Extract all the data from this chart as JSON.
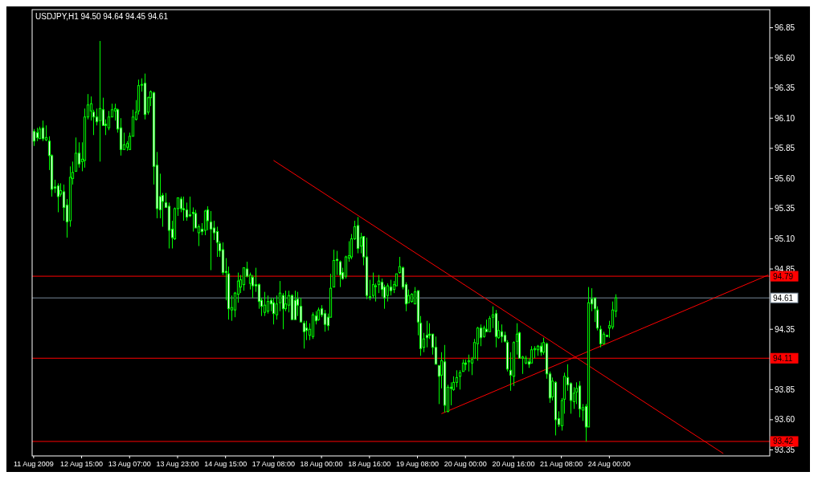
{
  "chart_data": {
    "type": "candlestick",
    "title": "USDJPY,H1 94.50 94.64 94.45 94.61",
    "ylim": [
      93.3,
      97.0
    ],
    "categories": [
      "11 Aug 2009",
      null,
      null,
      null,
      null,
      null,
      null,
      null,
      null,
      null,
      null,
      null,
      null,
      null,
      null,
      null,
      "12 Aug 15:00",
      null,
      null,
      null,
      null,
      null,
      null,
      null,
      null,
      null,
      null,
      null,
      null,
      null,
      null,
      null,
      "13 Aug 07:00",
      null,
      null,
      null,
      null,
      null,
      null,
      null,
      null,
      null,
      null,
      null,
      null,
      null,
      null,
      null,
      "13 Aug 23:00",
      null,
      null,
      null,
      null,
      null,
      null,
      null,
      null,
      null,
      null,
      null,
      null,
      null,
      null,
      null,
      "14 Aug 15:00",
      null,
      null,
      null,
      null,
      null,
      null,
      null,
      null,
      null,
      null,
      null,
      null,
      null,
      null,
      null,
      "17 Aug 08:00",
      null,
      null,
      null,
      null,
      null,
      null,
      null,
      null,
      null,
      null,
      null,
      null,
      null,
      null,
      null,
      "18 Aug 00:00",
      null,
      null,
      null,
      null,
      null,
      null,
      null,
      null,
      null,
      null,
      null,
      null,
      null,
      null,
      null,
      "18 Aug 16:00",
      null,
      null,
      null,
      null,
      null,
      null,
      null,
      null,
      null,
      null,
      null,
      null,
      null,
      null,
      null,
      "19 Aug 08:00",
      null,
      null,
      null,
      null,
      null,
      null,
      null,
      null,
      null,
      null,
      null,
      null,
      null,
      null,
      null,
      "20 Aug 00:00",
      null,
      null,
      null,
      null,
      null,
      null,
      null,
      null,
      null,
      null,
      null,
      null,
      null,
      null,
      null,
      "20 Aug 16:00",
      null,
      null,
      null,
      null,
      null,
      null,
      null,
      null,
      null,
      null,
      null,
      null,
      null,
      null,
      null,
      "21 Aug 08:00",
      null,
      null,
      null,
      null,
      null,
      null,
      null,
      null,
      null,
      null,
      null,
      null,
      null,
      null,
      null,
      "24 Aug 00:00",
      null,
      null,
      null,
      null,
      null,
      null,
      null,
      null,
      null,
      null,
      null,
      null,
      null,
      null,
      null,
      null,
      null,
      null,
      null,
      null,
      null,
      null,
      null,
      null,
      null,
      null,
      null,
      null,
      null,
      null,
      null,
      null,
      null,
      null,
      null,
      null,
      null,
      null,
      null,
      null,
      null,
      null,
      null,
      null,
      null,
      null,
      null,
      null,
      null,
      null,
      null,
      null,
      null
    ],
    "yticks": [
      {
        "value": 96.85,
        "label": "96.85"
      },
      {
        "value": 96.6,
        "label": "96.60"
      },
      {
        "value": 96.35,
        "label": "96.35"
      },
      {
        "value": 96.1,
        "label": "96.10"
      },
      {
        "value": 95.85,
        "label": "95.85"
      },
      {
        "value": 95.6,
        "label": "95.60"
      },
      {
        "value": 95.35,
        "label": "95.35"
      },
      {
        "value": 95.1,
        "label": "95.10"
      },
      {
        "value": 94.85,
        "label": "94.85"
      },
      {
        "value": 94.35,
        "label": "94.35"
      },
      {
        "value": 93.85,
        "label": "93.85"
      },
      {
        "value": 93.6,
        "label": "93.60"
      },
      {
        "value": 93.35,
        "label": "93.35"
      }
    ],
    "ref_lines": [
      {
        "axis": "y",
        "value": 94.79,
        "label": "94.79",
        "color": "#ff0000"
      },
      {
        "axis": "y",
        "value": 94.61,
        "label": "94.61",
        "color": "#778899"
      },
      {
        "axis": "y",
        "value": 94.11,
        "label": "94.11",
        "color": "#ff0000"
      },
      {
        "axis": "y",
        "value": 93.42,
        "label": "93.42",
        "color": "#ff0000"
      }
    ],
    "series": [
      {
        "color": "#00ff00",
        "ohlc": [
          [
            95.99,
            96.01,
            95.87,
            95.91
          ],
          [
            95.98,
            96.02,
            95.91,
            95.94
          ],
          [
            95.93,
            96.03,
            95.93,
            96.01
          ],
          [
            96.02,
            96.08,
            95.91,
            95.93
          ],
          [
            95.92,
            96.04,
            95.91,
            95.94
          ],
          [
            95.91,
            95.95,
            95.67,
            95.79
          ],
          [
            95.79,
            95.8,
            95.45,
            95.51
          ],
          [
            95.53,
            95.59,
            95.48,
            95.52
          ],
          [
            95.54,
            95.56,
            95.32,
            95.45
          ],
          [
            95.47,
            95.56,
            95.45,
            95.5
          ],
          [
            95.49,
            95.55,
            95.25,
            95.36
          ],
          [
            95.38,
            95.43,
            95.11,
            95.24
          ],
          [
            95.25,
            95.7,
            95.2,
            95.61
          ],
          [
            95.6,
            95.74,
            95.55,
            95.65
          ],
          [
            95.66,
            95.94,
            95.66,
            95.81
          ],
          [
            95.81,
            95.9,
            95.69,
            95.72
          ],
          [
            95.74,
            95.9,
            95.66,
            95.76
          ],
          [
            95.75,
            96.18,
            95.69,
            96.11
          ],
          [
            96.11,
            96.3,
            96.09,
            96.21
          ],
          [
            96.16,
            96.28,
            96.08,
            96.22
          ],
          [
            96.15,
            96.17,
            95.96,
            96.11
          ],
          [
            96.11,
            96.18,
            96.04,
            96.07
          ],
          [
            96.08,
            96.74,
            95.74,
            96.18
          ],
          [
            96.17,
            96.27,
            96.04,
            96.04
          ],
          [
            96.05,
            96.09,
            95.96,
            96.04
          ],
          [
            96.02,
            96.16,
            96.0,
            96.11
          ],
          [
            96.11,
            96.22,
            96.11,
            96.17
          ],
          [
            96.16,
            96.22,
            96.08,
            96.18
          ],
          [
            96.17,
            96.18,
            95.98,
            96.01
          ],
          [
            96.02,
            96.1,
            95.79,
            95.84
          ],
          [
            95.84,
            95.98,
            95.84,
            95.88
          ],
          [
            95.86,
            95.91,
            95.83,
            95.89
          ],
          [
            95.84,
            95.98,
            95.84,
            95.95
          ],
          [
            95.95,
            96.17,
            95.95,
            96.11
          ],
          [
            96.09,
            96.25,
            96.08,
            96.15
          ],
          [
            96.16,
            96.42,
            96.13,
            96.37
          ],
          [
            96.38,
            96.43,
            96.32,
            96.38
          ],
          [
            96.39,
            96.47,
            96.09,
            96.13
          ],
          [
            96.15,
            96.28,
            96.13,
            96.27
          ],
          [
            96.27,
            96.33,
            96.2,
            96.32
          ],
          [
            96.31,
            96.32,
            95.55,
            95.7
          ],
          [
            95.71,
            95.82,
            95.27,
            95.35
          ],
          [
            95.45,
            95.64,
            95.27,
            95.34
          ],
          [
            95.46,
            95.48,
            95.2,
            95.41
          ],
          [
            95.4,
            95.48,
            95.36,
            95.36
          ],
          [
            95.37,
            95.4,
            95.02,
            95.17
          ],
          [
            95.18,
            95.25,
            95.02,
            95.11
          ],
          [
            95.1,
            95.36,
            95.09,
            95.35
          ],
          [
            95.35,
            95.44,
            95.29,
            95.44
          ],
          [
            95.43,
            95.45,
            95.32,
            95.35
          ],
          [
            95.35,
            95.45,
            95.25,
            95.34
          ],
          [
            95.34,
            95.4,
            95.25,
            95.28
          ],
          [
            95.3,
            95.45,
            95.28,
            95.29
          ],
          [
            95.32,
            95.36,
            95.16,
            95.31
          ],
          [
            95.31,
            95.34,
            95.19,
            95.19
          ],
          [
            95.15,
            95.22,
            95.04,
            95.2
          ],
          [
            95.18,
            95.23,
            95.13,
            95.16
          ],
          [
            95.17,
            95.34,
            95.13,
            95.33
          ],
          [
            95.34,
            95.37,
            95.17,
            95.25
          ],
          [
            95.24,
            95.33,
            94.84,
            95.18
          ],
          [
            95.19,
            95.25,
            95.09,
            95.15
          ],
          [
            95.16,
            95.2,
            94.95,
            95.07
          ],
          [
            95.06,
            95.08,
            94.95,
            95.0
          ],
          [
            95.01,
            95.07,
            94.8,
            94.82
          ],
          [
            94.83,
            94.94,
            94.59,
            94.82
          ],
          [
            94.81,
            94.87,
            94.43,
            94.52
          ],
          [
            94.51,
            94.63,
            94.42,
            94.53
          ],
          [
            94.51,
            94.66,
            94.45,
            94.65
          ],
          [
            94.64,
            94.82,
            94.57,
            94.75
          ],
          [
            94.7,
            94.8,
            94.65,
            94.76
          ],
          [
            94.72,
            94.86,
            94.67,
            94.86
          ],
          [
            94.85,
            94.91,
            94.78,
            94.79
          ],
          [
            94.73,
            94.82,
            94.68,
            94.8
          ],
          [
            94.78,
            94.8,
            94.61,
            94.71
          ],
          [
            94.72,
            94.86,
            94.66,
            94.71
          ],
          [
            94.72,
            94.73,
            94.52,
            94.58
          ],
          [
            94.59,
            94.61,
            94.46,
            94.54
          ],
          [
            94.49,
            94.66,
            94.46,
            94.55
          ],
          [
            94.5,
            94.63,
            94.48,
            94.58
          ],
          [
            94.59,
            94.61,
            94.5,
            94.56
          ],
          [
            94.57,
            94.61,
            94.39,
            94.48
          ],
          [
            94.47,
            94.63,
            94.43,
            94.56
          ],
          [
            94.57,
            94.75,
            94.5,
            94.65
          ],
          [
            94.63,
            94.65,
            94.35,
            94.52
          ],
          [
            94.52,
            94.67,
            94.5,
            94.56
          ],
          [
            94.55,
            94.67,
            94.49,
            94.63
          ],
          [
            94.63,
            94.64,
            94.43,
            94.43
          ],
          [
            94.59,
            94.67,
            94.43,
            94.43
          ],
          [
            94.6,
            94.66,
            94.46,
            94.55
          ],
          [
            94.54,
            94.61,
            94.41,
            94.41
          ],
          [
            94.4,
            94.42,
            94.19,
            94.33
          ],
          [
            94.36,
            94.42,
            94.26,
            94.34
          ],
          [
            94.3,
            94.4,
            94.26,
            94.35
          ],
          [
            94.29,
            94.49,
            94.27,
            94.47
          ],
          [
            94.46,
            94.5,
            94.39,
            94.42
          ],
          [
            94.43,
            94.53,
            94.42,
            94.51
          ],
          [
            94.52,
            94.55,
            94.45,
            94.47
          ],
          [
            94.48,
            94.51,
            94.33,
            94.39
          ],
          [
            94.45,
            94.48,
            94.34,
            94.38
          ],
          [
            94.45,
            94.81,
            94.45,
            94.69
          ],
          [
            94.7,
            95.01,
            94.7,
            94.92
          ],
          [
            94.93,
            95.0,
            94.8,
            94.92
          ],
          [
            94.91,
            94.92,
            94.7,
            94.8
          ],
          [
            94.82,
            94.86,
            94.76,
            94.77
          ],
          [
            94.79,
            94.96,
            94.77,
            94.95
          ],
          [
            94.94,
            95.08,
            94.91,
            94.96
          ],
          [
            94.95,
            95.14,
            94.93,
            95.1
          ],
          [
            95.1,
            95.25,
            95.09,
            95.2
          ],
          [
            95.21,
            95.28,
            94.98,
            95.02
          ],
          [
            95.04,
            95.15,
            94.98,
            95.11
          ],
          [
            95.12,
            95.12,
            94.88,
            94.95
          ],
          [
            94.95,
            95.11,
            94.6,
            94.63
          ],
          [
            94.62,
            94.76,
            94.59,
            94.62
          ],
          [
            94.63,
            94.82,
            94.61,
            94.72
          ],
          [
            94.71,
            94.73,
            94.58,
            94.71
          ],
          [
            94.72,
            94.8,
            94.65,
            94.75
          ],
          [
            94.74,
            94.77,
            94.62,
            94.68
          ],
          [
            94.7,
            94.72,
            94.52,
            94.61
          ],
          [
            94.63,
            94.73,
            94.58,
            94.71
          ],
          [
            94.7,
            94.76,
            94.63,
            94.67
          ],
          [
            94.68,
            94.75,
            94.65,
            94.72
          ],
          [
            94.71,
            94.81,
            94.71,
            94.81
          ],
          [
            94.82,
            94.95,
            94.81,
            94.87
          ],
          [
            94.86,
            94.87,
            94.68,
            94.7
          ],
          [
            94.72,
            94.74,
            94.5,
            94.56
          ],
          [
            94.57,
            94.68,
            94.57,
            94.63
          ],
          [
            94.58,
            94.65,
            94.57,
            94.64
          ],
          [
            94.56,
            94.7,
            94.56,
            94.66
          ],
          [
            94.67,
            94.67,
            94.3,
            94.41
          ],
          [
            94.4,
            94.46,
            94.13,
            94.19
          ],
          [
            94.2,
            94.32,
            94.16,
            94.27
          ],
          [
            94.3,
            94.42,
            94.2,
            94.28
          ],
          [
            94.31,
            94.4,
            94.27,
            94.3
          ],
          [
            94.31,
            94.31,
            94.14,
            94.2
          ],
          [
            94.2,
            94.29,
            94.06,
            94.06
          ],
          [
            94.05,
            94.05,
            93.73,
            93.96
          ],
          [
            93.97,
            94.16,
            93.86,
            94.09
          ],
          [
            94.08,
            94.22,
            93.66,
            93.72
          ],
          [
            93.67,
            93.89,
            93.66,
            93.87
          ],
          [
            93.87,
            93.91,
            93.72,
            93.86
          ],
          [
            93.85,
            93.96,
            93.84,
            93.91
          ],
          [
            93.91,
            94.01,
            93.87,
            93.95
          ],
          [
            93.96,
            94.01,
            93.85,
            93.99
          ],
          [
            94.0,
            94.1,
            94.0,
            94.07
          ],
          [
            94.07,
            94.1,
            94.01,
            94.06
          ],
          [
            94.08,
            94.14,
            94.0,
            94.09
          ],
          [
            94.07,
            94.12,
            93.97,
            94.1
          ],
          [
            94.11,
            94.27,
            94.11,
            94.24
          ],
          [
            94.23,
            94.37,
            94.09,
            94.36
          ],
          [
            94.36,
            94.39,
            94.21,
            94.28
          ],
          [
            94.29,
            94.38,
            94.28,
            94.36
          ],
          [
            94.35,
            94.43,
            94.33,
            94.33
          ],
          [
            94.33,
            94.46,
            94.33,
            94.44
          ],
          [
            94.45,
            94.54,
            94.36,
            94.47
          ],
          [
            94.48,
            94.51,
            94.2,
            94.29
          ],
          [
            94.28,
            94.42,
            94.27,
            94.34
          ],
          [
            94.33,
            94.39,
            94.24,
            94.29
          ],
          [
            94.3,
            94.33,
            94.24,
            94.25
          ],
          [
            94.24,
            94.26,
            94.0,
            94.02
          ],
          [
            94.01,
            94.16,
            93.84,
            93.97
          ],
          [
            93.96,
            94.25,
            93.88,
            94.24
          ],
          [
            94.25,
            94.4,
            94.14,
            94.31
          ],
          [
            94.32,
            94.33,
            94.11,
            94.11
          ],
          [
            94.11,
            94.13,
            93.98,
            94.12
          ],
          [
            94.07,
            94.13,
            94.06,
            94.11
          ],
          [
            94.08,
            94.11,
            94.03,
            94.06
          ],
          [
            94.07,
            94.21,
            94.07,
            94.18
          ],
          [
            94.18,
            94.21,
            94.11,
            94.19
          ],
          [
            94.18,
            94.22,
            94.13,
            94.21
          ],
          [
            94.21,
            94.24,
            94.13,
            94.16
          ],
          [
            94.16,
            94.28,
            94.14,
            94.24
          ],
          [
            94.23,
            94.24,
            93.94,
            93.98
          ],
          [
            93.98,
            94.0,
            93.74,
            93.78
          ],
          [
            93.79,
            93.95,
            93.76,
            93.92
          ],
          [
            93.91,
            93.92,
            93.47,
            93.6
          ],
          [
            93.61,
            93.67,
            93.54,
            93.56
          ],
          [
            93.55,
            93.78,
            93.51,
            93.76
          ],
          [
            93.77,
            93.99,
            93.65,
            93.96
          ],
          [
            93.95,
            94.06,
            93.84,
            93.89
          ],
          [
            93.9,
            93.91,
            93.65,
            93.76
          ],
          [
            93.75,
            93.87,
            93.69,
            93.82
          ],
          [
            93.83,
            93.91,
            93.73,
            93.86
          ],
          [
            93.88,
            93.92,
            93.62,
            93.69
          ],
          [
            93.68,
            93.73,
            93.59,
            93.7
          ],
          [
            93.71,
            93.73,
            93.42,
            93.54
          ],
          [
            93.54,
            94.7,
            93.54,
            94.57
          ],
          [
            94.6,
            94.69,
            94.5,
            94.56
          ],
          [
            94.61,
            94.61,
            94.41,
            94.52
          ],
          [
            94.51,
            94.54,
            94.34,
            94.36
          ],
          [
            94.35,
            94.38,
            94.2,
            94.23
          ],
          [
            94.23,
            94.33,
            94.23,
            94.31
          ],
          [
            94.3,
            94.3,
            94.29,
            94.29
          ],
          [
            94.36,
            94.42,
            94.28,
            94.38
          ],
          [
            94.37,
            94.58,
            94.35,
            94.51
          ],
          [
            94.5,
            94.64,
            94.45,
            94.61
          ],
          null,
          null,
          null,
          null,
          null,
          null,
          null,
          null,
          null,
          null,
          null,
          null,
          null,
          null,
          null,
          null,
          null,
          null,
          null,
          null,
          null,
          null,
          null,
          null,
          null,
          null,
          null,
          null,
          null,
          null,
          null,
          null,
          null,
          null,
          null,
          null,
          null,
          null,
          null,
          null,
          null,
          null,
          null,
          null,
          null,
          null,
          null,
          null,
          null,
          null,
          null
        ]
      },
      {
        "type": "line",
        "color": "#ff0000",
        "values": [
          null,
          null,
          null,
          null,
          null,
          null,
          null,
          null,
          null,
          null,
          null,
          null,
          null,
          null,
          null,
          null,
          null,
          null,
          null,
          null,
          null,
          null,
          null,
          null,
          null,
          null,
          null,
          null,
          null,
          null,
          null,
          null,
          null,
          null,
          null,
          null,
          null,
          null,
          null,
          null,
          null,
          null,
          null,
          null,
          null,
          null,
          null,
          null,
          null,
          null,
          null,
          null,
          null,
          null,
          null,
          null,
          null,
          null,
          null,
          null,
          null,
          null,
          null,
          null,
          null,
          null,
          null,
          null,
          null,
          null,
          null,
          null,
          null,
          null,
          null,
          null,
          null,
          null,
          null,
          null,
          95.75,
          null,
          null,
          null,
          null,
          null,
          null,
          null,
          null,
          null,
          null,
          null,
          null,
          null,
          null,
          null,
          null,
          null,
          null,
          null,
          null,
          null,
          null,
          null,
          null,
          null,
          null,
          null,
          null,
          null,
          null,
          null,
          null,
          null,
          null,
          null,
          null,
          null,
          null,
          null,
          null,
          null,
          null,
          null,
          null,
          null,
          null,
          null,
          null,
          null,
          null,
          null,
          null,
          null,
          null,
          null,
          null,
          null,
          null,
          null,
          null,
          null,
          null,
          null,
          null,
          null,
          null,
          null,
          null,
          null,
          null,
          null,
          null,
          null,
          null,
          null,
          null,
          null,
          null,
          null,
          null,
          null,
          null,
          null,
          null,
          null,
          null,
          null,
          null,
          null,
          null,
          null,
          null,
          null,
          null,
          null,
          null,
          null,
          null,
          null,
          null,
          null,
          null,
          null,
          null,
          null,
          null,
          null,
          null,
          null,
          null,
          null,
          null,
          null,
          null,
          null,
          null,
          null,
          null,
          null,
          null,
          null,
          null,
          null,
          null,
          null,
          null,
          null,
          null,
          null,
          null,
          null,
          null,
          null,
          null,
          null,
          null,
          null,
          null,
          null,
          null,
          null,
          null,
          null,
          null,
          null,
          null,
          null,
          null,
          null,
          93.32,
          null,
          null,
          null,
          null,
          null,
          null,
          null,
          null,
          null,
          null,
          null,
          null,
          null,
          null,
          null
        ]
      },
      {
        "type": "line",
        "color": "#ff0000",
        "values": [
          null,
          null,
          null,
          null,
          null,
          null,
          null,
          null,
          null,
          null,
          null,
          null,
          null,
          null,
          null,
          null,
          null,
          null,
          null,
          null,
          null,
          null,
          null,
          null,
          null,
          null,
          null,
          null,
          null,
          null,
          null,
          null,
          null,
          null,
          null,
          null,
          null,
          null,
          null,
          null,
          null,
          null,
          null,
          null,
          null,
          null,
          null,
          null,
          null,
          null,
          null,
          null,
          null,
          null,
          null,
          null,
          null,
          null,
          null,
          null,
          null,
          null,
          null,
          null,
          null,
          null,
          null,
          null,
          null,
          null,
          null,
          null,
          null,
          null,
          null,
          null,
          null,
          null,
          null,
          null,
          null,
          null,
          null,
          null,
          null,
          null,
          null,
          null,
          null,
          null,
          null,
          null,
          null,
          null,
          null,
          null,
          null,
          null,
          null,
          null,
          null,
          null,
          null,
          null,
          null,
          null,
          null,
          null,
          null,
          null,
          null,
          null,
          null,
          null,
          null,
          null,
          null,
          null,
          null,
          null,
          null,
          null,
          null,
          null,
          null,
          null,
          null,
          null,
          null,
          null,
          null,
          null,
          null,
          null,
          null,
          null,
          93.65,
          null,
          null,
          null,
          null,
          null,
          null,
          null,
          null,
          null,
          null,
          null,
          null,
          null,
          null,
          null,
          null,
          null,
          null,
          null,
          null,
          null,
          null,
          null,
          null,
          null,
          null,
          null,
          null,
          null,
          null,
          null,
          null,
          null,
          null,
          null,
          null,
          null,
          null,
          null,
          null,
          null,
          null,
          null,
          null,
          null,
          null,
          null,
          null,
          null,
          null,
          null,
          null,
          null,
          null,
          null,
          null,
          null,
          null,
          null,
          null,
          null,
          null,
          null,
          null,
          null,
          null,
          null,
          null,
          null,
          null,
          null,
          null,
          null,
          null,
          null,
          null,
          null,
          null,
          null,
          null,
          null,
          null,
          null,
          null,
          null,
          null,
          null,
          null,
          null,
          null,
          null,
          null,
          null,
          null,
          null,
          null,
          null,
          null,
          null,
          null,
          null,
          null,
          null,
          null,
          null,
          null,
          null,
          null,
          94.8
        ]
      }
    ]
  }
}
